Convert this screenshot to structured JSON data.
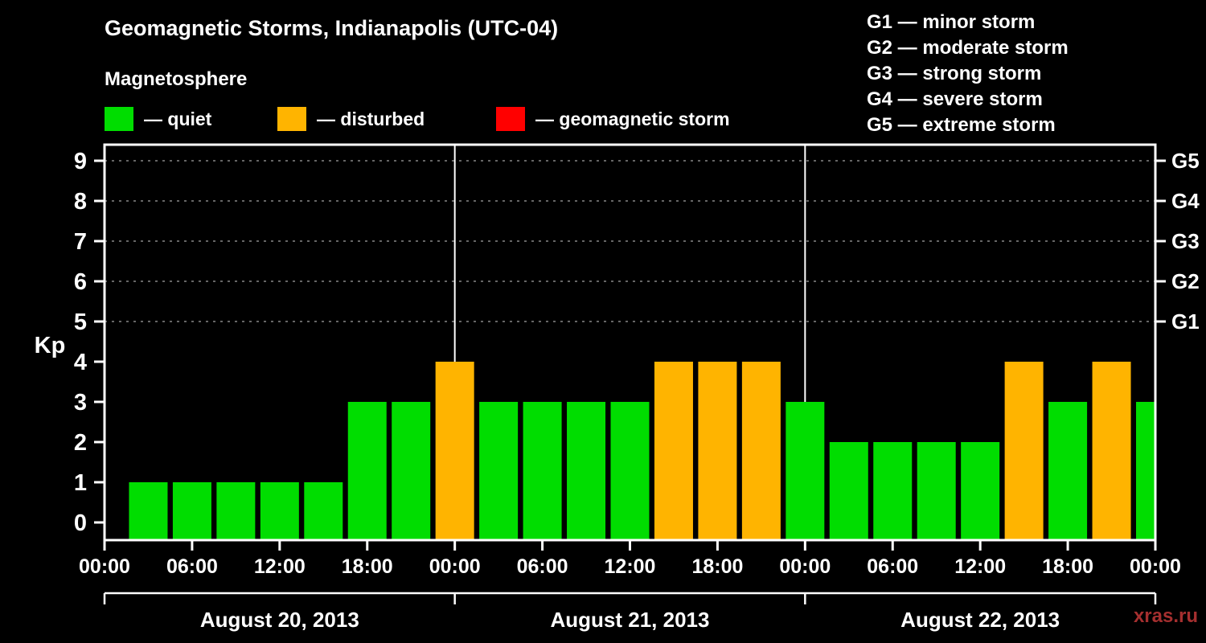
{
  "title": "Geomagnetic Storms, Indianapolis (UTC-04)",
  "legend": {
    "title": "Magnetosphere",
    "items": [
      {
        "id": "quiet",
        "label": "— quiet",
        "color": "#00dd00"
      },
      {
        "id": "disturbed",
        "label": "— disturbed",
        "color": "#ffb400"
      },
      {
        "id": "storm",
        "label": "— geomagnetic storm",
        "color": "#ff0000"
      }
    ]
  },
  "g_legend": {
    "lines": [
      "G1 — minor storm",
      "G2 — moderate storm",
      "G3 — strong storm",
      "G4 — severe storm",
      "G5 — extreme storm"
    ]
  },
  "watermark": "xras.ru",
  "chart_data": {
    "type": "bar",
    "title": "Geomagnetic Storms, Indianapolis (UTC-04)",
    "ylabel": "Kp",
    "ylim": [
      0,
      9
    ],
    "yticks": [
      "0",
      "1",
      "2",
      "3",
      "4",
      "5",
      "6",
      "7",
      "8",
      "9"
    ],
    "grid_levels": [
      5,
      6,
      7,
      8,
      9
    ],
    "right_axis": [
      {
        "label": "G1",
        "kp": 5
      },
      {
        "label": "G2",
        "kp": 6
      },
      {
        "label": "G3",
        "kp": 7
      },
      {
        "label": "G4",
        "kp": 8
      },
      {
        "label": "G5",
        "kp": 9
      }
    ],
    "x_tick_labels": [
      "00:00",
      "06:00",
      "12:00",
      "18:00",
      "00:00",
      "06:00",
      "12:00",
      "18:00",
      "00:00",
      "06:00",
      "12:00",
      "18:00",
      "00:00"
    ],
    "interval_hours": 3,
    "days": [
      {
        "date": "August 20, 2013",
        "kp": [
          0,
          1,
          1,
          1,
          1,
          1,
          3,
          3
        ]
      },
      {
        "date": "August 21, 2013",
        "kp": [
          4,
          3,
          3,
          3,
          3,
          4,
          4,
          4
        ]
      },
      {
        "date": "August 22, 2013",
        "kp": [
          3,
          2,
          2,
          2,
          2,
          4,
          3,
          4
        ]
      }
    ],
    "next_day_first_kp": 3,
    "colors": {
      "quiet": "#00dd00",
      "disturbed": "#ffb400",
      "storm": "#ff0000",
      "grid": "#888888",
      "axis": "#ffffff"
    },
    "color_rule": {
      "quiet_max": 3,
      "disturbed_max": 4
    },
    "grid": "dashed",
    "legend_position": "top"
  }
}
